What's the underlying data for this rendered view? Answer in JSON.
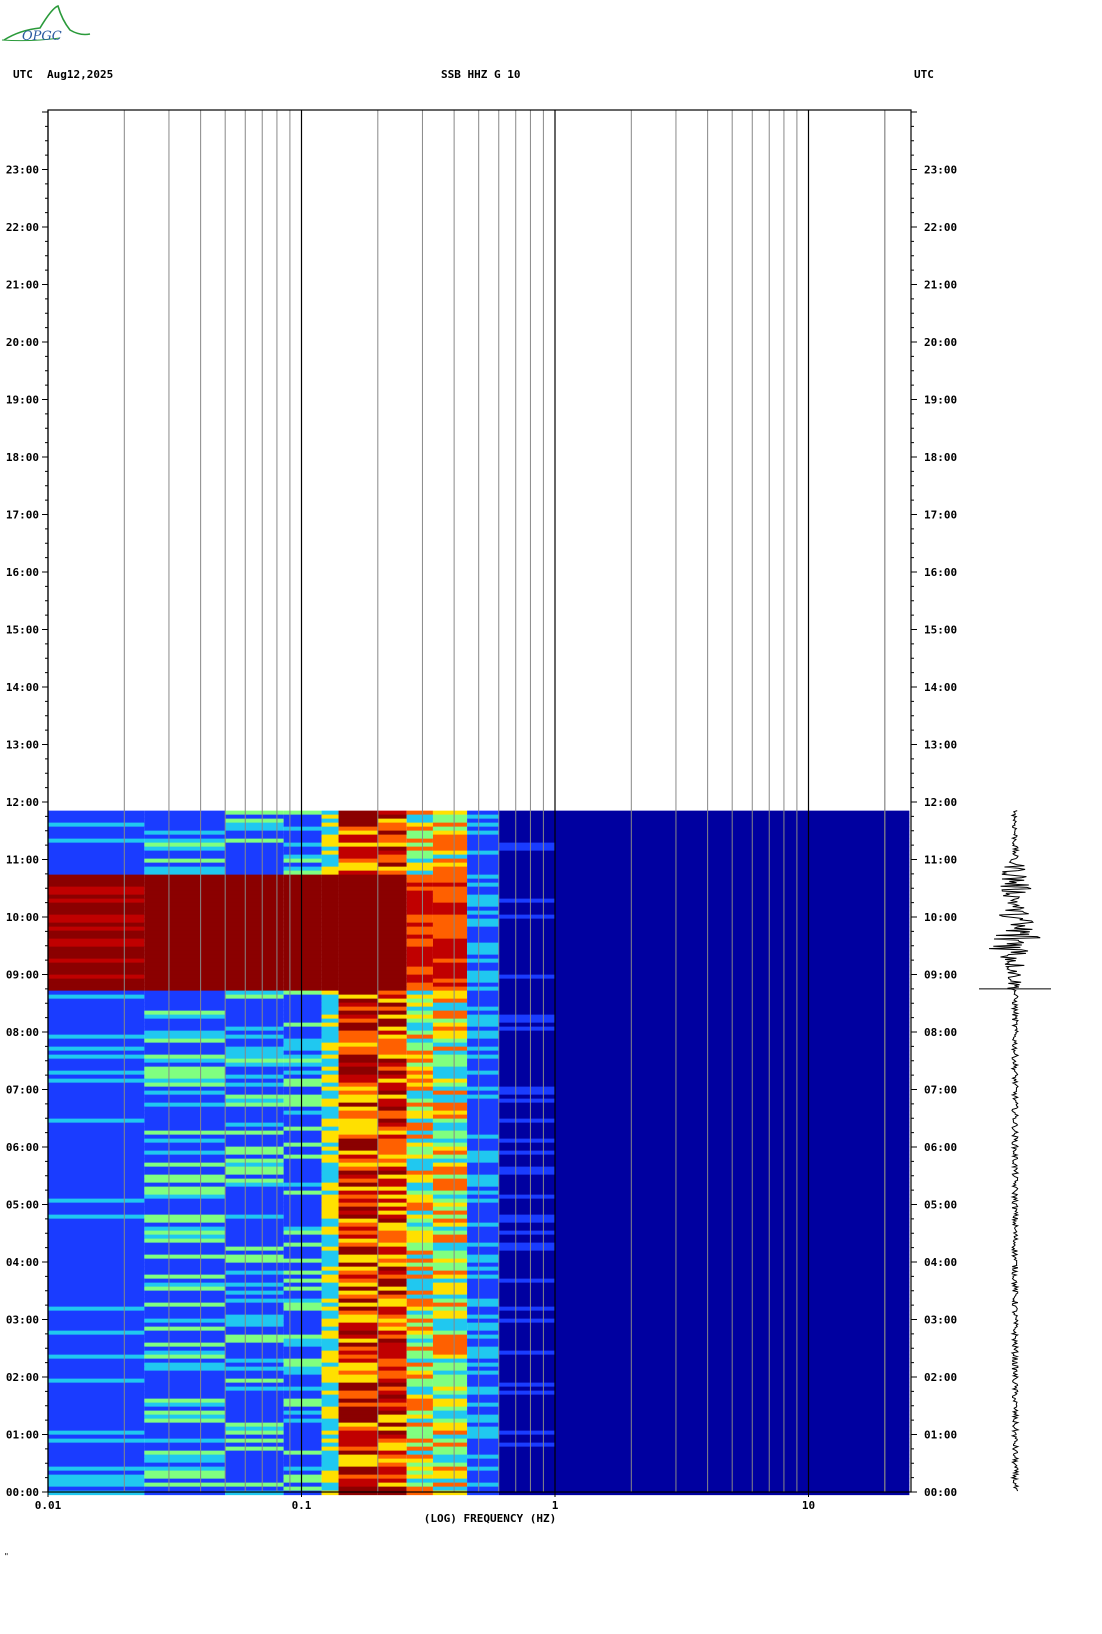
{
  "header": {
    "left_tz": "UTC",
    "date": "Aug12,2025",
    "station": "SSB HHZ G 10",
    "right_tz": "UTC"
  },
  "logo": {
    "text": "OPGC"
  },
  "colors": {
    "low": "#0000a0",
    "blue": "#1a3cff",
    "cyan": "#20c8f0",
    "green": "#80ff80",
    "yellow": "#ffe000",
    "orange": "#ff6000",
    "red": "#c00000",
    "darkred": "#8b0000"
  },
  "chart_data": {
    "type": "heatmap",
    "title": "SSB HHZ G 10",
    "xlabel": "(LOG) FREQUENCY (HZ)",
    "x_scale": "log",
    "xlim": [
      0.01,
      25
    ],
    "x_ticks": [
      "0.01",
      "0.1",
      "1",
      "10"
    ],
    "y_ticks": [
      "00:00",
      "01:00",
      "02:00",
      "03:00",
      "04:00",
      "05:00",
      "06:00",
      "07:00",
      "08:00",
      "09:00",
      "10:00",
      "11:00",
      "12:00",
      "13:00",
      "14:00",
      "15:00",
      "16:00",
      "17:00",
      "18:00",
      "19:00",
      "20:00",
      "21:00",
      "22:00",
      "23:00"
    ],
    "ylim_hours": [
      0,
      24
    ],
    "data_end_hour": 11.85,
    "event_hours": [
      8.75,
      10.8
    ],
    "grid": true
  },
  "footer_mark": "\""
}
